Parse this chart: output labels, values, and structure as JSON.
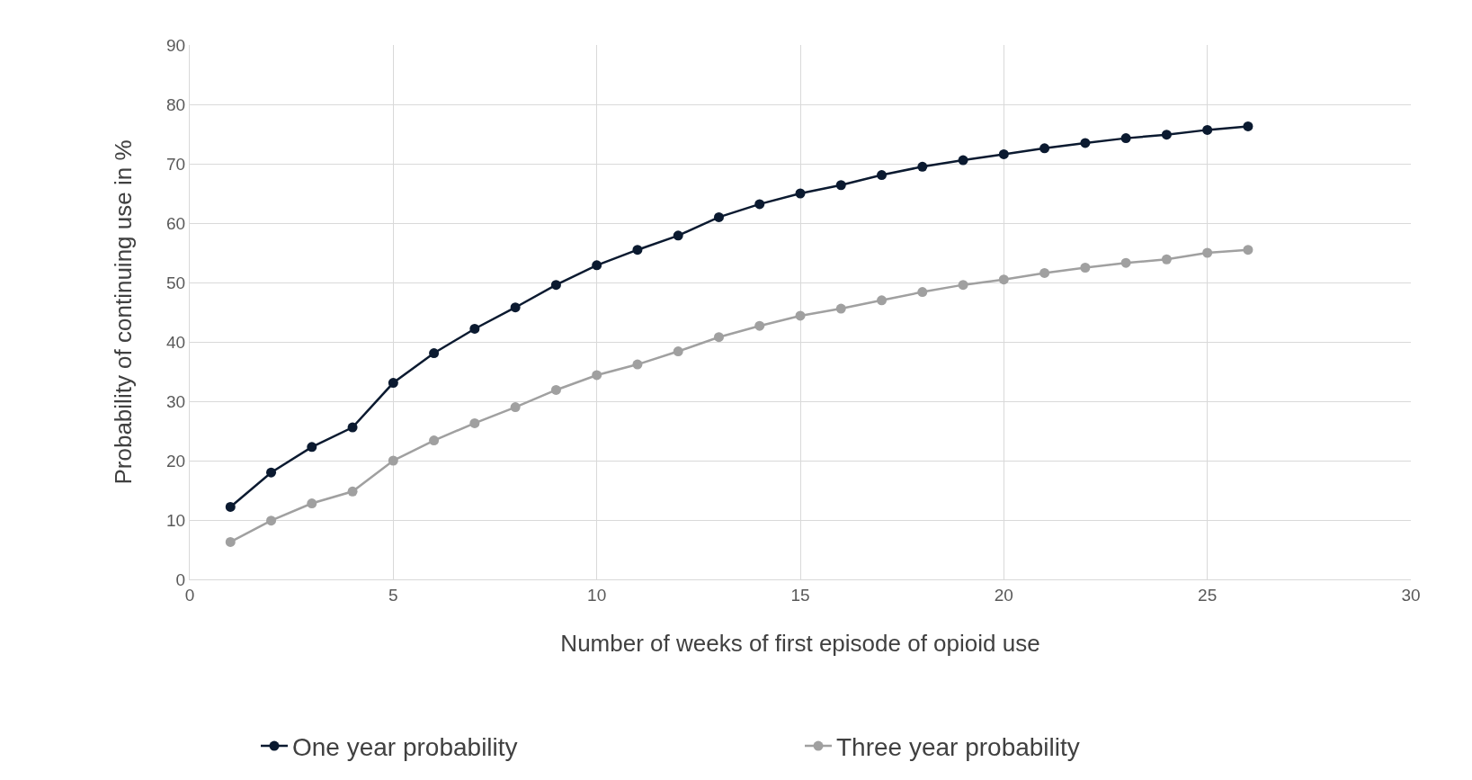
{
  "chart_data": {
    "type": "line",
    "xlabel": "Number of weeks of first episode of opioid use",
    "ylabel": "Probability of continuing use in %",
    "x": [
      1,
      2,
      3,
      4,
      5,
      6,
      7,
      8,
      9,
      10,
      11,
      12,
      13,
      14,
      15,
      16,
      17,
      18,
      19,
      20,
      21,
      22,
      23,
      24,
      25,
      26
    ],
    "series": [
      {
        "name": "One year probability",
        "color": "#0b1a30",
        "values": [
          12.2,
          18.0,
          22.3,
          25.6,
          33.1,
          38.1,
          42.2,
          45.8,
          49.6,
          52.9,
          55.5,
          57.9,
          61.0,
          63.2,
          65.0,
          66.4,
          68.1,
          69.5,
          70.6,
          71.6,
          72.6,
          73.5,
          74.3,
          74.9,
          75.7,
          76.3
        ]
      },
      {
        "name": "Three year probability",
        "color": "#a0a0a0",
        "values": [
          6.3,
          9.9,
          12.8,
          14.8,
          20.0,
          23.4,
          26.3,
          29.0,
          31.9,
          34.4,
          36.2,
          38.4,
          40.8,
          42.7,
          44.4,
          45.6,
          47.0,
          48.4,
          49.6,
          50.5,
          51.6,
          52.5,
          53.3,
          53.9,
          55.0,
          55.5
        ]
      }
    ],
    "xlim": [
      0,
      30
    ],
    "xticks": [
      0,
      5,
      10,
      15,
      20,
      25,
      30
    ],
    "ylim": [
      0,
      90
    ],
    "yticks": [
      0,
      10,
      20,
      30,
      40,
      50,
      60,
      70,
      80,
      90
    ],
    "grid": true,
    "legend": "bottom",
    "marker": "circle",
    "line_style": "solid"
  }
}
